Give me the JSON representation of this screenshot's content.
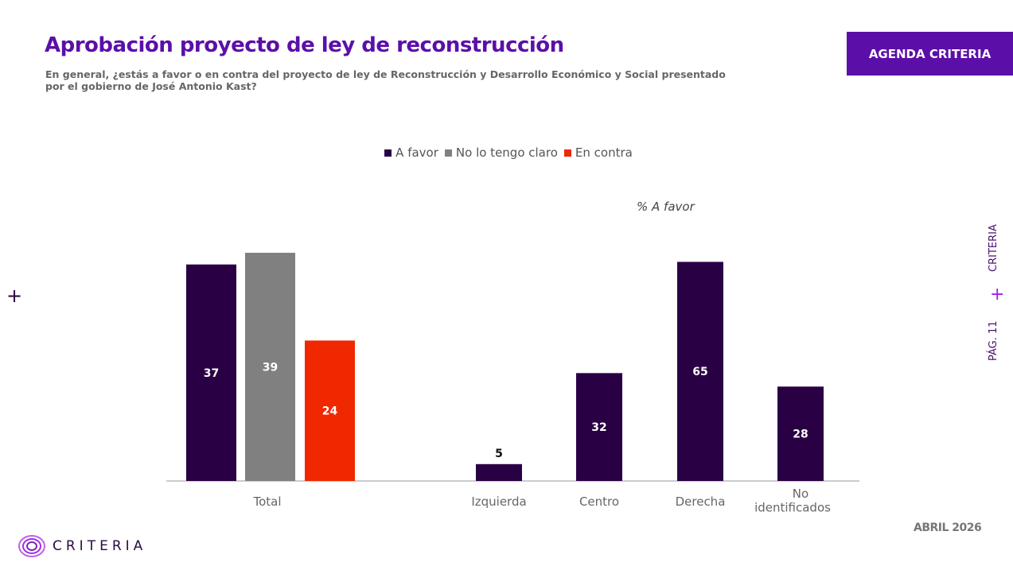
{
  "header": {
    "title": "Aprobación proyecto de ley de reconstrucción",
    "subtitle": "En general, ¿estás a favor o en contra del proyecto de ley de Reconstrucción y Desarrollo Económico y Social presentado por el gobierno de José Antonio Kast?",
    "badge": "AGENDA CRITERIA"
  },
  "side": {
    "brand": "CRITERIA",
    "page": "PÁG. 11"
  },
  "footer": {
    "date": "ABRIL 2026",
    "logo": "CRITERIA"
  },
  "colors": {
    "a_favor": "#2a0045",
    "no_claro": "#808080",
    "en_contra": "#f02800",
    "accent": "#5b0fa8"
  },
  "chart_data": [
    {
      "type": "bar",
      "categories": [
        "Total"
      ],
      "legend_placement": "top",
      "series": [
        {
          "name": "A favor",
          "values": [
            37
          ]
        },
        {
          "name": "No lo tengo claro",
          "values": [
            39
          ]
        },
        {
          "name": "En contra",
          "values": [
            24
          ]
        }
      ],
      "grid": false
    },
    {
      "type": "bar",
      "annotation": "% A favor",
      "categories": [
        "Izquierda",
        "Centro",
        "Derecha",
        "No identificados"
      ],
      "series": [
        {
          "name": "A favor",
          "values": [
            5,
            32,
            65,
            28
          ]
        }
      ],
      "grid": false
    }
  ]
}
